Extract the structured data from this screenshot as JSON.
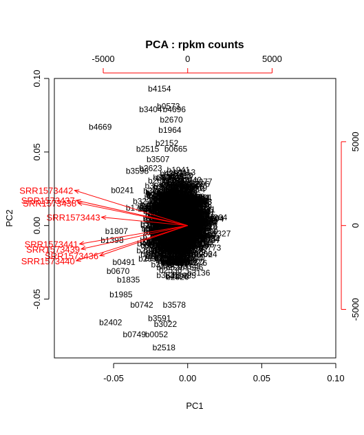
{
  "chart_data": {
    "type": "scatter",
    "subtype": "biplot",
    "title": "PCA : rpkm counts",
    "xlabel": "PC1",
    "ylabel": "PC2",
    "xlim": [
      -0.09,
      0.1
    ],
    "ylim": [
      -0.09,
      0.1
    ],
    "x_ticks": [
      "-0.05",
      "0.00",
      "0.05",
      "0.10"
    ],
    "y_ticks": [
      "-0.05",
      "0.00",
      "0.05",
      "0.10"
    ],
    "top_axis_ticks": [
      "-5000",
      "0",
      "5000"
    ],
    "right_axis_ticks": [
      "-5000",
      "0",
      "5000"
    ],
    "loading_scale": 1.14e-05,
    "colors": {
      "points": "#000000",
      "loadings": "#ff0000",
      "frame": "#000000"
    },
    "gene_labels": [
      {
        "name": "b4154",
        "x": -0.019,
        "y": 0.093
      },
      {
        "name": "b0573",
        "x": -0.013,
        "y": 0.081
      },
      {
        "name": "b3404",
        "x": -0.025,
        "y": 0.079
      },
      {
        "name": "b4696",
        "x": -0.009,
        "y": 0.079
      },
      {
        "name": "b4669",
        "x": -0.059,
        "y": 0.067
      },
      {
        "name": "b2670",
        "x": -0.011,
        "y": 0.072
      },
      {
        "name": "b1964",
        "x": -0.012,
        "y": 0.065
      },
      {
        "name": "b2152",
        "x": -0.014,
        "y": 0.056
      },
      {
        "name": "b2515",
        "x": -0.027,
        "y": 0.052
      },
      {
        "name": "b0665",
        "x": -0.008,
        "y": 0.052
      },
      {
        "name": "b3507",
        "x": -0.02,
        "y": 0.045
      },
      {
        "name": "b2623",
        "x": -0.025,
        "y": 0.039
      },
      {
        "name": "b3598",
        "x": -0.034,
        "y": 0.037
      },
      {
        "name": "b1430",
        "x": -0.004,
        "y": 0.034
      },
      {
        "name": "b0241",
        "x": -0.044,
        "y": 0.024
      },
      {
        "name": "b1721",
        "x": -0.034,
        "y": 0.012
      },
      {
        "name": "b1807",
        "x": -0.048,
        "y": -0.004
      },
      {
        "name": "b1398",
        "x": -0.051,
        "y": -0.01
      },
      {
        "name": "b0491",
        "x": -0.043,
        "y": -0.025
      },
      {
        "name": "b0670",
        "x": -0.047,
        "y": -0.031
      },
      {
        "name": "b1835",
        "x": -0.04,
        "y": -0.037
      },
      {
        "name": "b1985",
        "x": -0.045,
        "y": -0.047
      },
      {
        "name": "b0742",
        "x": -0.031,
        "y": -0.054
      },
      {
        "name": "b3578",
        "x": -0.009,
        "y": -0.054
      },
      {
        "name": "b3591",
        "x": -0.019,
        "y": -0.063
      },
      {
        "name": "b2402",
        "x": -0.052,
        "y": -0.066
      },
      {
        "name": "b3022",
        "x": -0.015,
        "y": -0.067
      },
      {
        "name": "b0749",
        "x": -0.036,
        "y": -0.074
      },
      {
        "name": "b0052",
        "x": -0.021,
        "y": -0.074
      },
      {
        "name": "b2518",
        "x": -0.016,
        "y": -0.083
      }
    ],
    "loadings": [
      {
        "name": "SRR1573442",
        "x": -6700,
        "y": 2100
      },
      {
        "name": "SRR1573437",
        "x": -6600,
        "y": 1500
      },
      {
        "name": "SRR1573438",
        "x": -6500,
        "y": 1350
      },
      {
        "name": "SRR1573443",
        "x": -5100,
        "y": 500
      },
      {
        "name": "SRR1573441",
        "x": -6400,
        "y": -1100
      },
      {
        "name": "SRR1573439",
        "x": -6300,
        "y": -1400
      },
      {
        "name": "SRR1573436",
        "x": -5200,
        "y": -1800
      },
      {
        "name": "SRR1573440",
        "x": -6600,
        "y": -2100
      }
    ]
  }
}
